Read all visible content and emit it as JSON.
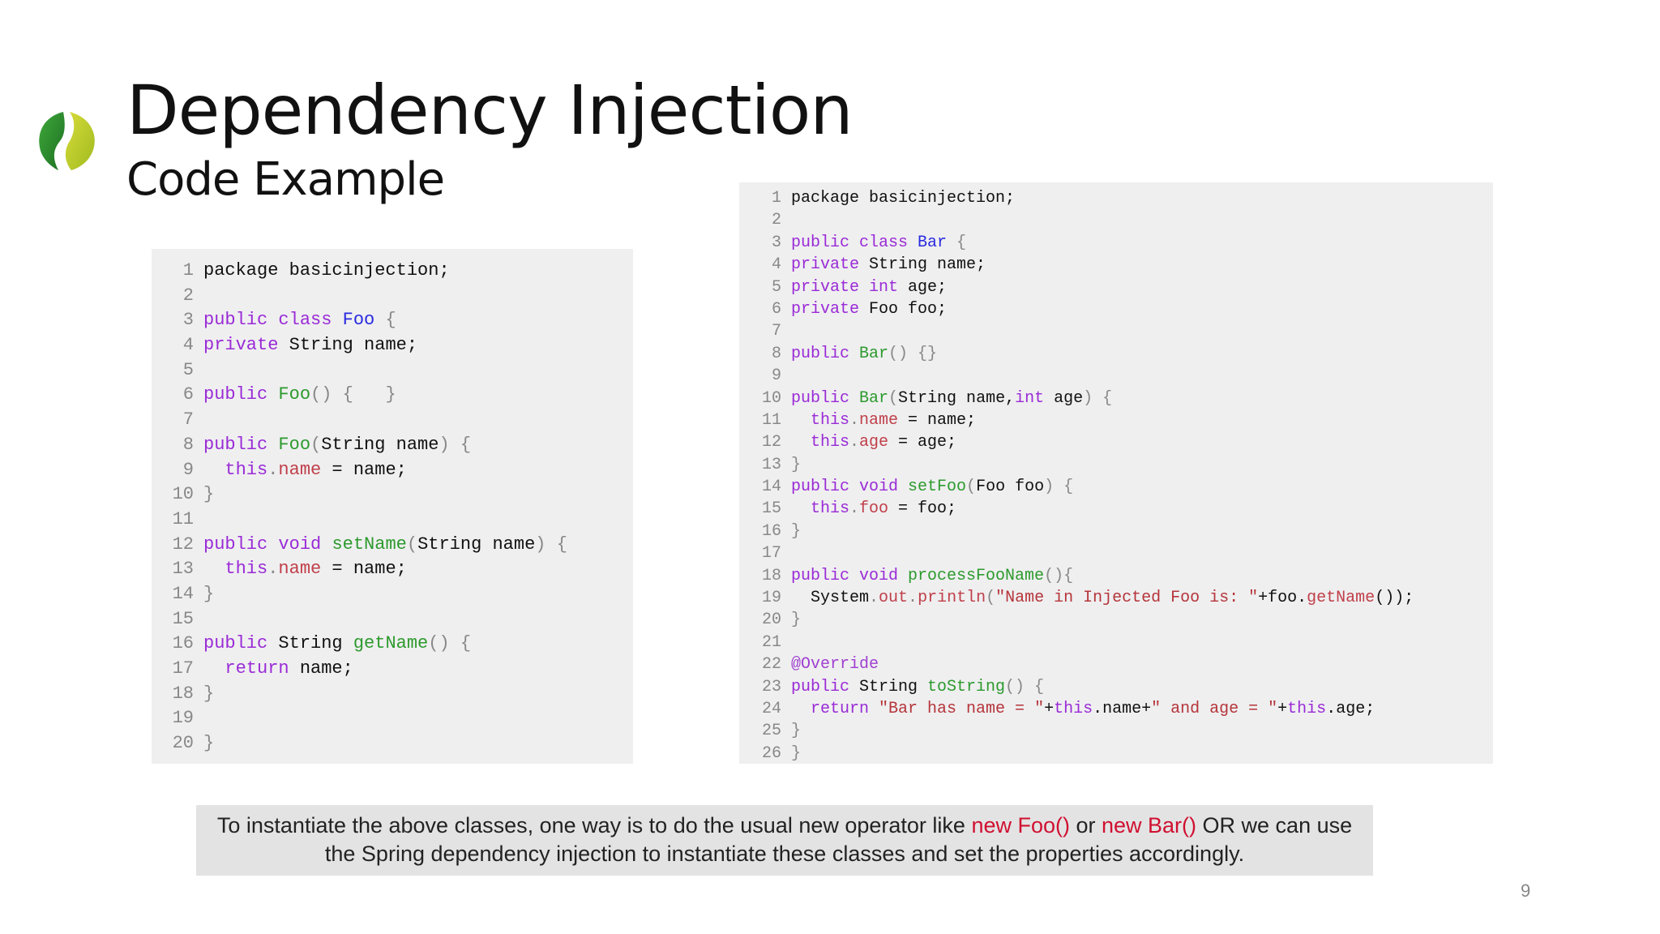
{
  "slide": {
    "title": "Dependency Injection",
    "subtitle": "Code Example",
    "page_number": "9",
    "logo_icon": "spring-leaf-logo",
    "colors": {
      "keyword": "#9a2bd6",
      "class_name": "#2a2ae0",
      "method": "#2d9a2d",
      "field": "#c0404a",
      "string": "#b5353a",
      "highlight": "#d01030"
    }
  },
  "code_left": [
    [
      [
        "package basicinjection;",
        ""
      ]
    ],
    [],
    [
      [
        "public class ",
        "kw"
      ],
      [
        "Foo",
        "cls"
      ],
      [
        " {",
        "pn"
      ]
    ],
    [
      [
        "private ",
        "kw"
      ],
      [
        "String name;",
        ""
      ]
    ],
    [],
    [
      [
        "public ",
        "kw"
      ],
      [
        "Foo",
        "fn"
      ],
      [
        "() {   }",
        "pn"
      ]
    ],
    [],
    [
      [
        "public ",
        "kw"
      ],
      [
        "Foo",
        "fn"
      ],
      [
        "(",
        "pn"
      ],
      [
        "String name",
        ""
      ],
      [
        ") {",
        "pn"
      ]
    ],
    [
      [
        "  this",
        "kw"
      ],
      [
        ".",
        "pn"
      ],
      [
        "name",
        "prop"
      ],
      [
        " = name;",
        ""
      ]
    ],
    [
      [
        "}",
        "pn"
      ]
    ],
    [],
    [
      [
        "public void ",
        "kw"
      ],
      [
        "setName",
        "fn"
      ],
      [
        "(",
        "pn"
      ],
      [
        "String name",
        ""
      ],
      [
        ") {",
        "pn"
      ]
    ],
    [
      [
        "  this",
        "kw"
      ],
      [
        ".",
        "pn"
      ],
      [
        "name",
        "prop"
      ],
      [
        " = name;",
        ""
      ]
    ],
    [
      [
        "}",
        "pn"
      ]
    ],
    [],
    [
      [
        "public ",
        "kw"
      ],
      [
        "String ",
        ""
      ],
      [
        "getName",
        "fn"
      ],
      [
        "() {",
        "pn"
      ]
    ],
    [
      [
        "  return ",
        "kw"
      ],
      [
        "name;",
        ""
      ]
    ],
    [
      [
        "}",
        "pn"
      ]
    ],
    [],
    [
      [
        "}",
        "pn"
      ]
    ]
  ],
  "code_right": [
    [
      [
        "package basicinjection;",
        ""
      ]
    ],
    [],
    [
      [
        "public class ",
        "kw"
      ],
      [
        "Bar",
        "cls"
      ],
      [
        " {",
        "pn"
      ]
    ],
    [
      [
        "private ",
        "kw"
      ],
      [
        "String name;",
        ""
      ]
    ],
    [
      [
        "private int ",
        "kw"
      ],
      [
        "age;",
        ""
      ]
    ],
    [
      [
        "private ",
        "kw"
      ],
      [
        "Foo foo;",
        ""
      ]
    ],
    [],
    [
      [
        "public ",
        "kw"
      ],
      [
        "Bar",
        "fn"
      ],
      [
        "() {}",
        "pn"
      ]
    ],
    [],
    [
      [
        "public ",
        "kw"
      ],
      [
        "Bar",
        "fn"
      ],
      [
        "(",
        "pn"
      ],
      [
        "String name,",
        ""
      ],
      [
        "int ",
        "kw"
      ],
      [
        "age",
        ""
      ],
      [
        ") {",
        "pn"
      ]
    ],
    [
      [
        "  this",
        "kw"
      ],
      [
        ".",
        "pn"
      ],
      [
        "name",
        "prop"
      ],
      [
        " = name;",
        ""
      ]
    ],
    [
      [
        "  this",
        "kw"
      ],
      [
        ".",
        "pn"
      ],
      [
        "age",
        "prop"
      ],
      [
        " = age;",
        ""
      ]
    ],
    [
      [
        "}",
        "pn"
      ]
    ],
    [
      [
        "public void ",
        "kw"
      ],
      [
        "setFoo",
        "fn"
      ],
      [
        "(",
        "pn"
      ],
      [
        "Foo foo",
        ""
      ],
      [
        ") {",
        "pn"
      ]
    ],
    [
      [
        "  this",
        "kw"
      ],
      [
        ".",
        "pn"
      ],
      [
        "foo",
        "prop"
      ],
      [
        " = foo;",
        ""
      ]
    ],
    [
      [
        "}",
        "pn"
      ]
    ],
    [],
    [
      [
        "public void ",
        "kw"
      ],
      [
        "processFooName",
        "fn"
      ],
      [
        "(){",
        "pn"
      ]
    ],
    [
      [
        "  System",
        ""
      ],
      [
        ".",
        "pn"
      ],
      [
        "out",
        "prop"
      ],
      [
        ".",
        "pn"
      ],
      [
        "println",
        "prop"
      ],
      [
        "(",
        "pn"
      ],
      [
        "\"Name in Injected Foo is: \"",
        "str"
      ],
      [
        "+foo.",
        ""
      ],
      [
        "getName",
        "prop"
      ],
      [
        "());",
        ""
      ]
    ],
    [
      [
        "}",
        "pn"
      ]
    ],
    [],
    [
      [
        "@Override",
        "ann"
      ]
    ],
    [
      [
        "public ",
        "kw"
      ],
      [
        "String ",
        ""
      ],
      [
        "toString",
        "fn"
      ],
      [
        "() {",
        "pn"
      ]
    ],
    [
      [
        "  return ",
        "kw"
      ],
      [
        "\"Bar has name = \"",
        "str"
      ],
      [
        "+",
        ""
      ],
      [
        "this",
        "kw"
      ],
      [
        ".name+",
        ""
      ],
      [
        "\" and age = \"",
        "str"
      ],
      [
        "+",
        ""
      ],
      [
        "this",
        "kw"
      ],
      [
        ".age;",
        ""
      ]
    ],
    [
      [
        "}",
        "pn"
      ]
    ],
    [
      [
        "}",
        "pn"
      ]
    ]
  ],
  "caption": {
    "part1": "To instantiate the above classes, one way is to do the usual new operator like ",
    "hl1": "new Foo()",
    "part2": " or ",
    "hl2": "new Bar()",
    "part3": " OR we can use the Spring dependency injection to instantiate these classes and set the properties accordingly."
  }
}
